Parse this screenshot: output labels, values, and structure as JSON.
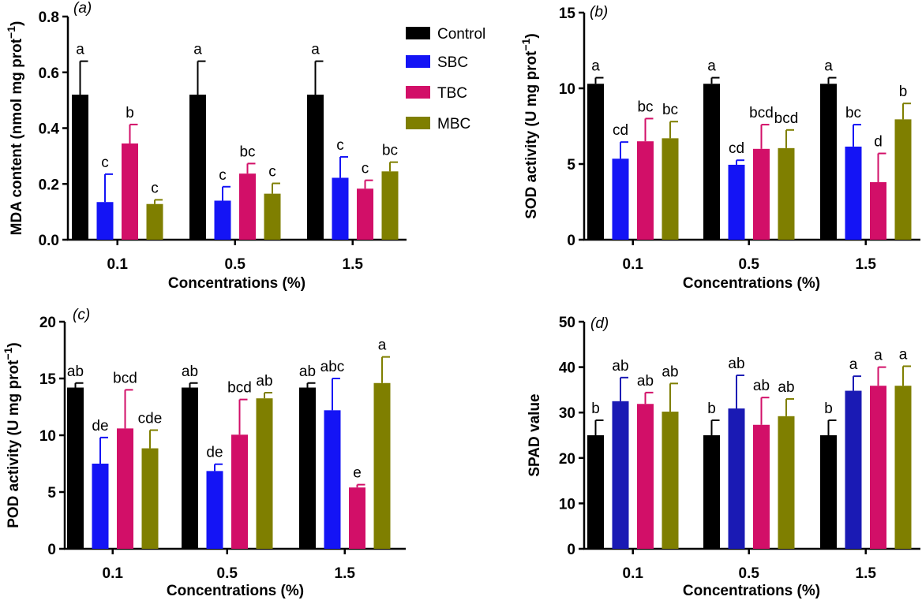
{
  "chart_data": [
    {
      "type": "bar",
      "panel_label": "(a)",
      "categories": [
        "0.1",
        "0.5",
        "1.5"
      ],
      "xlabel": "Concentrations (%)",
      "ylabel": "MDA content  (nmol mg prot",
      "ylabel_sup": "−1",
      "ylabel_end": ")",
      "ylim": [
        0,
        0.8
      ],
      "yticks": [
        "0.0",
        "0.2",
        "0.4",
        "0.6",
        "0.8"
      ],
      "yticks_values": [
        0,
        0.2,
        0.4,
        0.6,
        0.8
      ],
      "legend_position": "top-right",
      "series": [
        {
          "name": "Control",
          "values": [
            0.52,
            0.52,
            0.52
          ],
          "errors": [
            0.12,
            0.12,
            0.12
          ],
          "letters": [
            "a",
            "a",
            "a"
          ]
        },
        {
          "name": "SBC",
          "values": [
            0.135,
            0.14,
            0.222
          ],
          "errors": [
            0.1,
            0.05,
            0.075
          ],
          "letters": [
            "c",
            "c",
            "c"
          ]
        },
        {
          "name": "TBC",
          "values": [
            0.345,
            0.237,
            0.183
          ],
          "errors": [
            0.068,
            0.036,
            0.03
          ],
          "letters": [
            "b",
            "bc",
            "c"
          ]
        },
        {
          "name": "MBC",
          "values": [
            0.128,
            0.165,
            0.245
          ],
          "errors": [
            0.015,
            0.037,
            0.033
          ],
          "letters": [
            "c",
            "c",
            "bc"
          ]
        }
      ]
    },
    {
      "type": "bar",
      "panel_label": "(b)",
      "categories": [
        "0.1",
        "0.5",
        "1.5"
      ],
      "xlabel": "Concentrations (%)",
      "ylabel": "SOD activity (U mg prot",
      "ylabel_sup": "−1",
      "ylabel_end": ")",
      "ylim": [
        0,
        15
      ],
      "yticks": [
        "0",
        "5",
        "10",
        "15"
      ],
      "yticks_values": [
        0,
        5,
        10,
        15
      ],
      "series": [
        {
          "name": "Control",
          "values": [
            10.3,
            10.3,
            10.3
          ],
          "errors": [
            0.4,
            0.4,
            0.4
          ],
          "letters": [
            "a",
            "a",
            "a"
          ]
        },
        {
          "name": "SBC",
          "values": [
            5.35,
            4.95,
            6.15
          ],
          "errors": [
            1.1,
            0.3,
            1.45
          ],
          "letters": [
            "cd",
            "cd",
            "bc"
          ]
        },
        {
          "name": "TBC",
          "values": [
            6.5,
            6.0,
            3.8
          ],
          "errors": [
            1.5,
            1.6,
            1.9
          ],
          "letters": [
            "bc",
            "bcd",
            "d"
          ]
        },
        {
          "name": "MBC",
          "values": [
            6.7,
            6.05,
            7.95
          ],
          "errors": [
            1.1,
            1.2,
            1.05
          ],
          "letters": [
            "bc",
            "bcd",
            "b"
          ]
        }
      ]
    },
    {
      "type": "bar",
      "panel_label": "(c)",
      "categories": [
        "0.1",
        "0.5",
        "1.5"
      ],
      "xlabel": "Concentrations (%)",
      "ylabel": "POD activity (U mg prot",
      "ylabel_sup": "−1",
      "ylabel_end": ")",
      "ylim": [
        0,
        20
      ],
      "yticks": [
        "0",
        "5",
        "10",
        "15",
        "20"
      ],
      "yticks_values": [
        0,
        5,
        10,
        15,
        20
      ],
      "series": [
        {
          "name": "Control",
          "values": [
            14.2,
            14.2,
            14.2
          ],
          "errors": [
            0.4,
            0.4,
            0.4
          ],
          "letters": [
            "ab",
            "ab",
            "ab"
          ]
        },
        {
          "name": "SBC",
          "values": [
            7.5,
            6.85,
            12.2
          ],
          "errors": [
            2.3,
            0.6,
            2.8
          ],
          "letters": [
            "de",
            "de",
            "abc"
          ]
        },
        {
          "name": "TBC",
          "values": [
            10.6,
            10.05,
            5.4
          ],
          "errors": [
            3.4,
            3.1,
            0.25
          ],
          "letters": [
            "bcd",
            "bcd",
            "e"
          ]
        },
        {
          "name": "MBC",
          "values": [
            8.85,
            13.25,
            14.6
          ],
          "errors": [
            1.6,
            0.5,
            2.3
          ],
          "letters": [
            "cde",
            "ab",
            "a"
          ]
        }
      ]
    },
    {
      "type": "bar",
      "panel_label": "(d)",
      "categories": [
        "0.1",
        "0.5",
        "1.5"
      ],
      "xlabel": "Concentrations (%)",
      "ylabel": "SPAD value",
      "ylabel_sup": "",
      "ylabel_end": "",
      "ylim": [
        0,
        50
      ],
      "yticks": [
        "0",
        "10",
        "20",
        "30",
        "40",
        "50"
      ],
      "yticks_values": [
        0,
        10,
        20,
        30,
        40,
        50
      ],
      "series": [
        {
          "name": "Control",
          "values": [
            25,
            25,
            25
          ],
          "errors": [
            3.3,
            3.3,
            3.3
          ],
          "letters": [
            "b",
            "b",
            "b"
          ]
        },
        {
          "name": "SBC",
          "values": [
            32.5,
            30.9,
            34.8
          ],
          "errors": [
            5.2,
            7.3,
            3.2
          ],
          "letters": [
            "ab",
            "ab",
            "a"
          ]
        },
        {
          "name": "TBC",
          "values": [
            31.9,
            27.3,
            35.9
          ],
          "errors": [
            2.5,
            6.0,
            4.1
          ],
          "letters": [
            "ab",
            "ab",
            "a"
          ]
        },
        {
          "name": "MBC",
          "values": [
            30.2,
            29.2,
            35.9
          ],
          "errors": [
            6.2,
            3.8,
            4.3
          ],
          "letters": [
            "ab",
            "ab",
            "a"
          ]
        }
      ]
    }
  ],
  "colors": {
    "Control": "#000000",
    "SBC": "#1414f5",
    "TBC": "#d20f68",
    "MBC": "#7f7f00",
    "SBC_panel_d": "#1a1ab4"
  }
}
